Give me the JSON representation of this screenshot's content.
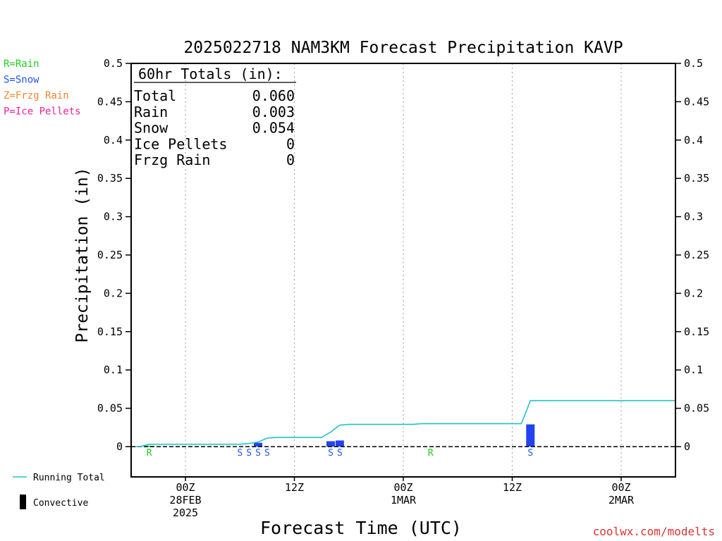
{
  "chart_data": {
    "type": "bar",
    "title": "2025022718 NAM3KM Forecast Precipitation KAVP",
    "xlabel": "Forecast Time (UTC)",
    "ylabel": "Precipitation (in)",
    "ylim": [
      0,
      0.5
    ],
    "yticks": [
      0,
      0.05,
      0.1,
      0.15,
      0.2,
      0.25,
      0.3,
      0.35,
      0.4,
      0.45,
      0.5
    ],
    "ytick_labels": [
      "0",
      "0.05",
      "0.1",
      "0.15",
      "0.2",
      "0.25",
      "0.3",
      "0.35",
      "0.4",
      "0.45",
      "0.5"
    ],
    "xticks": [
      {
        "hour": 6,
        "lines": [
          "00Z",
          "28FEB",
          "2025"
        ]
      },
      {
        "hour": 18,
        "lines": [
          "12Z"
        ]
      },
      {
        "hour": 30,
        "lines": [
          "00Z",
          "1MAR"
        ]
      },
      {
        "hour": 42,
        "lines": [
          "12Z"
        ]
      },
      {
        "hour": 54,
        "lines": [
          "00Z",
          "2MAR"
        ]
      }
    ],
    "grid": "vertical dotted at 00Z/12Z",
    "series": [
      {
        "name": "Running Total",
        "color": "#22c3c8",
        "points": [
          [
            0.5,
            0
          ],
          [
            1,
            0
          ],
          [
            2,
            0.003
          ],
          [
            3,
            0.003
          ],
          [
            4,
            0.003
          ],
          [
            5,
            0.003
          ],
          [
            6,
            0.003
          ],
          [
            7,
            0.003
          ],
          [
            8,
            0.003
          ],
          [
            9,
            0.003
          ],
          [
            10,
            0.003
          ],
          [
            11,
            0.003
          ],
          [
            12,
            0.003
          ],
          [
            13,
            0.004
          ],
          [
            14,
            0.006
          ],
          [
            15,
            0.011
          ],
          [
            16,
            0.012
          ],
          [
            17,
            0.012
          ],
          [
            18,
            0.012
          ],
          [
            19,
            0.012
          ],
          [
            20,
            0.012
          ],
          [
            21,
            0.012
          ],
          [
            22,
            0.019
          ],
          [
            23,
            0.028
          ],
          [
            24,
            0.029
          ],
          [
            25,
            0.029
          ],
          [
            26,
            0.029
          ],
          [
            27,
            0.029
          ],
          [
            28,
            0.029
          ],
          [
            29,
            0.029
          ],
          [
            30,
            0.029
          ],
          [
            31,
            0.029
          ],
          [
            32,
            0.03
          ],
          [
            33,
            0.03
          ],
          [
            34,
            0.03
          ],
          [
            35,
            0.03
          ],
          [
            36,
            0.03
          ],
          [
            37,
            0.03
          ],
          [
            38,
            0.03
          ],
          [
            39,
            0.03
          ],
          [
            40,
            0.03
          ],
          [
            41,
            0.03
          ],
          [
            42,
            0.03
          ],
          [
            43,
            0.03
          ],
          [
            44,
            0.06
          ],
          [
            45,
            0.06
          ],
          [
            46,
            0.06
          ],
          [
            47,
            0.06
          ],
          [
            48,
            0.06
          ],
          [
            49,
            0.06
          ],
          [
            50,
            0.06
          ],
          [
            51,
            0.06
          ],
          [
            52,
            0.06
          ],
          [
            53,
            0.06
          ],
          [
            54,
            0.06
          ],
          [
            55,
            0.06
          ],
          [
            56,
            0.06
          ],
          [
            57,
            0.06
          ],
          [
            58,
            0.06
          ],
          [
            59,
            0.06
          ],
          [
            60,
            0.06
          ]
        ]
      },
      {
        "name": "Convective",
        "color": "#000000",
        "values": []
      }
    ],
    "bars": [
      {
        "hour": 2,
        "value": 0.001,
        "color": "#22aa22"
      },
      {
        "hour": 14,
        "value": 0.005,
        "color": "#2244ee"
      },
      {
        "hour": 22,
        "value": 0.007,
        "color": "#2244ee"
      },
      {
        "hour": 23,
        "value": 0.008,
        "color": "#2244ee"
      },
      {
        "hour": 44,
        "value": 0.029,
        "color": "#2244ee"
      }
    ],
    "type_markers": [
      {
        "hour": 2,
        "label": "R",
        "color": "#22cc22"
      },
      {
        "hour": 12,
        "label": "S",
        "color": "#2255ee"
      },
      {
        "hour": 13,
        "label": "S",
        "color": "#2255ee"
      },
      {
        "hour": 14,
        "label": "S",
        "color": "#2255ee"
      },
      {
        "hour": 15,
        "label": "S",
        "color": "#2255ee"
      },
      {
        "hour": 22,
        "label": "S",
        "color": "#2255ee"
      },
      {
        "hour": 23,
        "label": "S",
        "color": "#2255ee"
      },
      {
        "hour": 33,
        "label": "R",
        "color": "#22cc22"
      },
      {
        "hour": 44,
        "label": "S",
        "color": "#2255ee"
      }
    ],
    "precip_legend": [
      {
        "label": "R=Rain",
        "color": "#22cc22"
      },
      {
        "label": "S=Snow",
        "color": "#2255ee"
      },
      {
        "label": "Z=Frzg Rain",
        "color": "#ee8833"
      },
      {
        "label": "P=Ice Pellets",
        "color": "#ee2299"
      }
    ],
    "totals_box": {
      "header": "60hr Totals (in):",
      "rows": [
        {
          "label": "Total",
          "value": "0.060"
        },
        {
          "label": "Rain",
          "value": "0.003"
        },
        {
          "label": "Snow",
          "value": "0.054"
        },
        {
          "label": "Ice Pellets",
          "value": "0"
        },
        {
          "label": "Frzg Rain",
          "value": "0"
        }
      ]
    },
    "bottom_legend": [
      {
        "label": "Running Total",
        "color": "#22c3c8",
        "kind": "line"
      },
      {
        "label": "Convective",
        "color": "#000000",
        "kind": "bar"
      }
    ],
    "credit": "coolwx.com/modelts"
  }
}
